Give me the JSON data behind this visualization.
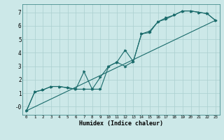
{
  "xlabel": "Humidex (Indice chaleur)",
  "bg_color": "#cce8e8",
  "grid_color": "#aacfcf",
  "line_color": "#1a6b6b",
  "xlim": [
    -0.5,
    23.5
  ],
  "ylim": [
    -0.6,
    7.6
  ],
  "xticks": [
    0,
    1,
    2,
    3,
    4,
    5,
    6,
    7,
    8,
    9,
    10,
    11,
    12,
    13,
    14,
    15,
    16,
    17,
    18,
    19,
    20,
    21,
    22,
    23
  ],
  "yticks": [
    0,
    1,
    2,
    3,
    4,
    5,
    6,
    7
  ],
  "ytick_labels": [
    "-0",
    "1",
    "2",
    "3",
    "4",
    "5",
    "6",
    "7"
  ],
  "line1_x": [
    0,
    1,
    2,
    3,
    4,
    5,
    6,
    7,
    8,
    9,
    10,
    11,
    12,
    13,
    14,
    15,
    16,
    17,
    18,
    19,
    20,
    21,
    22,
    23
  ],
  "line1_y": [
    -0.3,
    1.1,
    1.25,
    1.5,
    1.5,
    1.4,
    1.3,
    1.3,
    1.3,
    1.3,
    3.0,
    3.3,
    3.0,
    3.35,
    5.4,
    5.6,
    6.3,
    6.5,
    6.8,
    7.1,
    7.1,
    7.0,
    6.9,
    6.4
  ],
  "line2_x": [
    0,
    1,
    2,
    3,
    4,
    5,
    6,
    7,
    8,
    9,
    10,
    11,
    12,
    13,
    14,
    15,
    16,
    17,
    18,
    19,
    20,
    21,
    22,
    23
  ],
  "line2_y": [
    -0.3,
    1.1,
    1.25,
    1.5,
    1.5,
    1.4,
    1.3,
    2.6,
    1.3,
    2.2,
    3.0,
    3.3,
    4.2,
    3.35,
    5.4,
    5.5,
    6.3,
    6.6,
    6.8,
    7.1,
    7.1,
    7.0,
    6.9,
    6.4
  ],
  "line3_x": [
    0,
    23
  ],
  "line3_y": [
    -0.3,
    6.4
  ]
}
